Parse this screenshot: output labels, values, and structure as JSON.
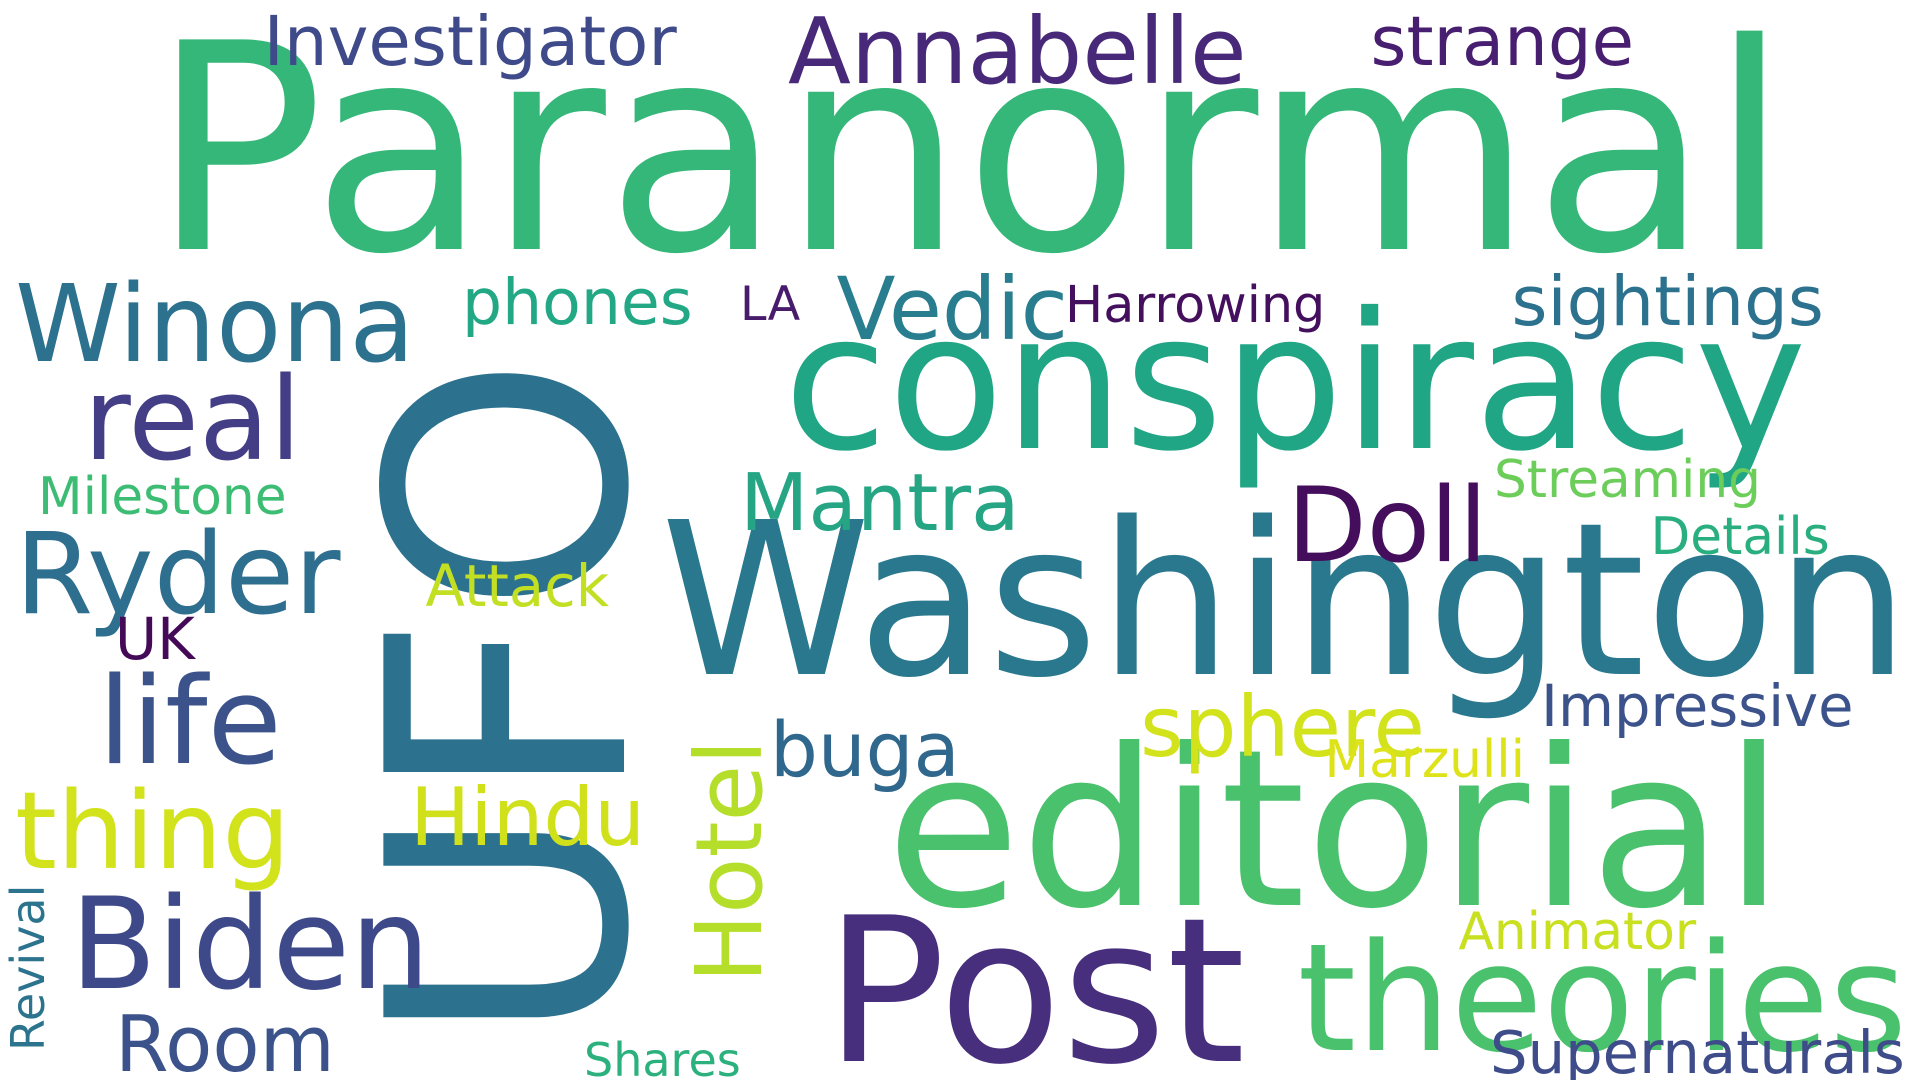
{
  "cloud": {
    "background": "#ffffff",
    "palette": "viridis",
    "words": [
      {
        "id": "paranormal",
        "text": "Paranormal",
        "color": "#35b779",
        "rotated": false
      },
      {
        "id": "ufo",
        "text": "UFO",
        "color": "#2c728e",
        "rotated": true
      },
      {
        "id": "conspiracy",
        "text": "conspiracy",
        "color": "#21a685",
        "rotated": false
      },
      {
        "id": "washington",
        "text": "Washington",
        "color": "#2a788e",
        "rotated": false
      },
      {
        "id": "editorial",
        "text": "editorial",
        "color": "#4ac16d",
        "rotated": false
      },
      {
        "id": "post",
        "text": "Post",
        "color": "#472f7d",
        "rotated": false
      },
      {
        "id": "theories",
        "text": "theories",
        "color": "#4ac16d",
        "rotated": false
      },
      {
        "id": "winona",
        "text": "Winona",
        "color": "#2c718e",
        "rotated": false
      },
      {
        "id": "real",
        "text": "real",
        "color": "#433e85",
        "rotated": false
      },
      {
        "id": "ryder",
        "text": "Ryder",
        "color": "#2e6e8e",
        "rotated": false
      },
      {
        "id": "life",
        "text": "life",
        "color": "#3b528b",
        "rotated": false
      },
      {
        "id": "biden",
        "text": "Biden",
        "color": "#3e4989",
        "rotated": false
      },
      {
        "id": "room",
        "text": "Room",
        "color": "#3b528b",
        "rotated": false
      },
      {
        "id": "thing",
        "text": "thing",
        "color": "#d2e21b",
        "rotated": false
      },
      {
        "id": "hindu",
        "text": "Hindu",
        "color": "#d0e11c",
        "rotated": false
      },
      {
        "id": "hotel",
        "text": "Hotel",
        "color": "#b5de2b",
        "rotated": true
      },
      {
        "id": "buga",
        "text": "buga",
        "color": "#30678d",
        "rotated": false
      },
      {
        "id": "sphere",
        "text": "sphere",
        "color": "#d2e21b",
        "rotated": false
      },
      {
        "id": "doll",
        "text": "Doll",
        "color": "#450e5c",
        "rotated": false
      },
      {
        "id": "mantra",
        "text": "Mantra",
        "color": "#25a584",
        "rotated": false
      },
      {
        "id": "vedic",
        "text": "Vedic",
        "color": "#287d8e",
        "rotated": false
      },
      {
        "id": "phones",
        "text": "phones",
        "color": "#22a884",
        "rotated": false
      },
      {
        "id": "la",
        "text": "LA",
        "color": "#481b6d",
        "rotated": false
      },
      {
        "id": "harrowing",
        "text": "Harrowing",
        "color": "#440f5c",
        "rotated": false
      },
      {
        "id": "sightings",
        "text": "sightings",
        "color": "#2c728e",
        "rotated": false
      },
      {
        "id": "investigator",
        "text": "Investigator",
        "color": "#3e4a89",
        "rotated": false
      },
      {
        "id": "annabelle",
        "text": "Annabelle",
        "color": "#482878",
        "rotated": false
      },
      {
        "id": "strange",
        "text": "strange",
        "color": "#481e70",
        "rotated": false
      },
      {
        "id": "milestone",
        "text": "Milestone",
        "color": "#3dbc74",
        "rotated": false
      },
      {
        "id": "attack",
        "text": "Attack",
        "color": "#c2df23",
        "rotated": false
      },
      {
        "id": "uk",
        "text": "UK",
        "color": "#440a57",
        "rotated": false
      },
      {
        "id": "streaming",
        "text": "Streaming",
        "color": "#6ccd5a",
        "rotated": false
      },
      {
        "id": "details",
        "text": "Details",
        "color": "#29af7f",
        "rotated": false
      },
      {
        "id": "impressive",
        "text": "Impressive",
        "color": "#3b528b",
        "rotated": false
      },
      {
        "id": "marzulli",
        "text": "Marzulli",
        "color": "#dde318",
        "rotated": false
      },
      {
        "id": "animator",
        "text": "Animator",
        "color": "#c8e020",
        "rotated": false
      },
      {
        "id": "supernaturals",
        "text": "Supernaturals",
        "color": "#3e4c8a",
        "rotated": false
      },
      {
        "id": "shares",
        "text": "Shares",
        "color": "#2cb17e",
        "rotated": false
      },
      {
        "id": "revival",
        "text": "Revival",
        "color": "#2c738e",
        "rotated": true
      }
    ]
  }
}
